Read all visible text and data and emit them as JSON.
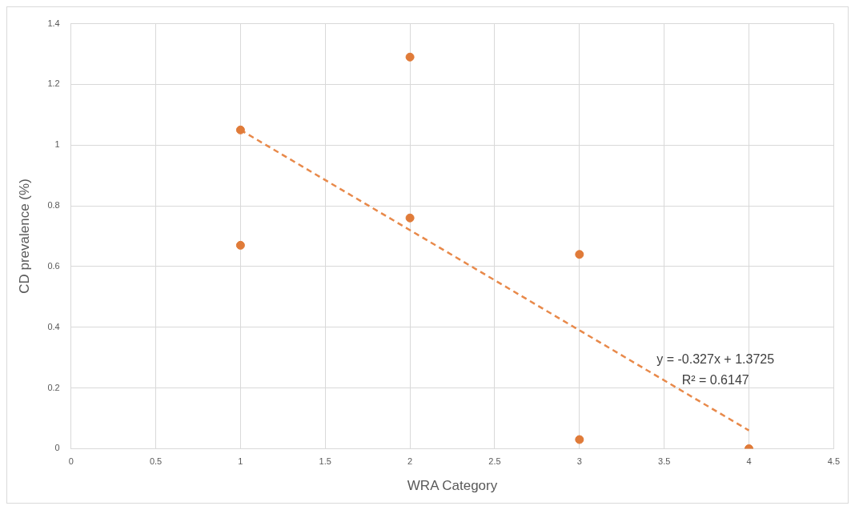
{
  "chart_data": {
    "type": "scatter",
    "xlabel": "WRA Category",
    "ylabel": "CD prevalence (%)",
    "xlim": [
      0,
      4.5
    ],
    "xticks": [
      0,
      0.5,
      1,
      1.5,
      2,
      2.5,
      3,
      3.5,
      4,
      4.5
    ],
    "ylim": [
      0,
      1.4
    ],
    "yticks": [
      0,
      0.2,
      0.4,
      0.6,
      0.8,
      1,
      1.2,
      1.4
    ],
    "grid": true,
    "legend": false,
    "series": [
      {
        "color": "#e07b39",
        "marker": "circle",
        "x": [
          1,
          1,
          2,
          2,
          3,
          3,
          4
        ],
        "values": [
          1.05,
          0.67,
          1.29,
          0.76,
          0.64,
          0.03,
          0.0
        ]
      },
      {
        "type": "line",
        "color": "#e8894a",
        "marker": "none",
        "line_style": "dashed",
        "x": [
          1,
          4
        ],
        "values": [
          1.05,
          0.06
        ]
      }
    ],
    "annotations": [
      "y = -0.327x + 1.3725",
      "R² = 0.6147"
    ]
  }
}
